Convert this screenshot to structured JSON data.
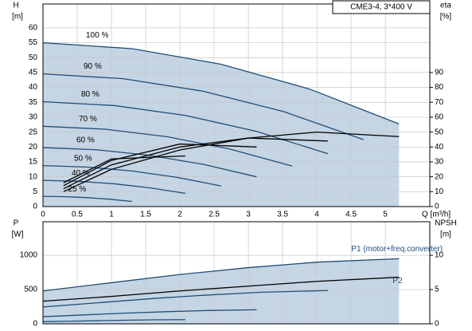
{
  "chart_data": [
    {
      "type": "line",
      "title": "CME3-4, 3*400 V",
      "y_label": "H",
      "y_unit": "[m]",
      "y2_label": "eta",
      "y2_unit": "[%]",
      "x_label": "Q [m³/h]",
      "xlim": [
        0,
        5.65
      ],
      "xticks": [
        0,
        0.5,
        1,
        1.5,
        2,
        2.5,
        3,
        3.5,
        4,
        4.5,
        5
      ],
      "ylim": [
        0,
        68
      ],
      "yticks": [
        0,
        5,
        10,
        15,
        20,
        25,
        30,
        35,
        40,
        45,
        50,
        55,
        60
      ],
      "y2lim": [
        0,
        136
      ],
      "y2ticks": [
        0,
        10,
        20,
        30,
        40,
        50,
        60,
        70,
        80,
        90
      ],
      "grid": true,
      "area_color": "#c5d5e4",
      "series": [
        {
          "name": "100 %",
          "color": "#1f4e79",
          "x": [
            0,
            1.3,
            2.6,
            3.9,
            5.2
          ],
          "values": [
            55,
            53,
            47.8,
            39.4,
            27.75
          ]
        },
        {
          "name": "90 %",
          "color": "#1f4e79",
          "x": [
            0,
            1.17,
            2.34,
            3.51,
            4.68
          ],
          "values": [
            44.55,
            42.93,
            38.72,
            31.91,
            22.48
          ]
        },
        {
          "name": "80 %",
          "color": "#1f4e79",
          "x": [
            0,
            1.04,
            2.08,
            3.12,
            4.16
          ],
          "values": [
            35.2,
            33.92,
            30.59,
            25.22,
            17.76
          ]
        },
        {
          "name": "70 %",
          "color": "#1f4e79",
          "x": [
            0,
            0.91,
            1.82,
            2.73,
            3.64
          ],
          "values": [
            26.95,
            25.97,
            23.42,
            19.31,
            13.6
          ]
        },
        {
          "name": "60 %",
          "color": "#1f4e79",
          "x": [
            0,
            0.78,
            1.56,
            2.34,
            3.12
          ],
          "values": [
            19.8,
            19.08,
            17.21,
            14.18,
            9.99
          ]
        },
        {
          "name": "50 %",
          "color": "#1f4e79",
          "x": [
            0,
            0.65,
            1.3,
            1.95,
            2.6
          ],
          "values": [
            13.75,
            13.25,
            11.95,
            9.85,
            6.94
          ]
        },
        {
          "name": "40 %",
          "color": "#1f4e79",
          "x": [
            0,
            0.52,
            1.04,
            1.56,
            2.08
          ],
          "values": [
            8.8,
            8.48,
            7.65,
            6.3,
            4.44
          ]
        },
        {
          "name": "25 %",
          "color": "#1f4e79",
          "x": [
            0,
            0.325,
            0.65,
            0.975,
            1.3
          ],
          "values": [
            3.44,
            3.31,
            2.99,
            2.46,
            1.73
          ]
        },
        {
          "color": "#000000",
          "axis": "y2",
          "x": [
            0.3,
            1,
            2,
            3,
            4,
            5.2
          ],
          "values": [
            10,
            25,
            38,
            46,
            50,
            47
          ]
        },
        {
          "color": "#000000",
          "axis": "y2",
          "x": [
            0.3,
            1,
            2,
            3,
            4.16
          ],
          "values": [
            12,
            28,
            40,
            46,
            44
          ]
        },
        {
          "color": "#000000",
          "axis": "y2",
          "x": [
            0.3,
            1,
            2,
            3.12
          ],
          "values": [
            14,
            31,
            42,
            40
          ]
        },
        {
          "color": "#000000",
          "axis": "y2",
          "x": [
            0.3,
            1,
            2.08
          ],
          "values": [
            16,
            32,
            34
          ]
        }
      ]
    },
    {
      "type": "line",
      "y_label": "P",
      "y_unit": "[W]",
      "y2_label": "NPSH",
      "y2_unit": "[m]",
      "xlim": [
        0,
        5.65
      ],
      "xticks": [
        0,
        0.5,
        1,
        1.5,
        2,
        2.5,
        3,
        3.5,
        4,
        4.5,
        5
      ],
      "ylim": [
        0,
        1490
      ],
      "yticks": [
        0,
        500,
        1000
      ],
      "y2lim": [
        0,
        14.9
      ],
      "y2ticks": [
        0,
        5,
        10
      ],
      "grid": true,
      "area_color": "#c5d5e4",
      "series": [
        {
          "name": "P1 (motor+freq.converter)",
          "color": "#1f4e79",
          "x": [
            0,
            1,
            2,
            3,
            4,
            5.2
          ],
          "values": [
            480,
            600,
            720,
            820,
            900,
            950
          ]
        },
        {
          "name": "P2",
          "color": "#000000",
          "x": [
            0,
            1,
            2,
            3,
            4,
            5.2
          ],
          "values": [
            330,
            400,
            480,
            550,
            620,
            680
          ]
        },
        {
          "color": "#1f4e79",
          "x": [
            0,
            0.8,
            1.6,
            2.4,
            3.2,
            4.16
          ],
          "values": [
            246,
            307,
            369,
            420,
            461,
            486
          ]
        },
        {
          "color": "#1f4e79",
          "x": [
            0,
            0.6,
            1.2,
            1.8,
            2.4,
            3.12
          ],
          "values": [
            104,
            130,
            156,
            177,
            194,
            205
          ]
        },
        {
          "color": "#1f4e79",
          "x": [
            0,
            0.4,
            0.8,
            1.2,
            1.6,
            2.08
          ],
          "values": [
            31,
            38,
            46,
            52,
            58,
            61
          ]
        }
      ]
    }
  ]
}
